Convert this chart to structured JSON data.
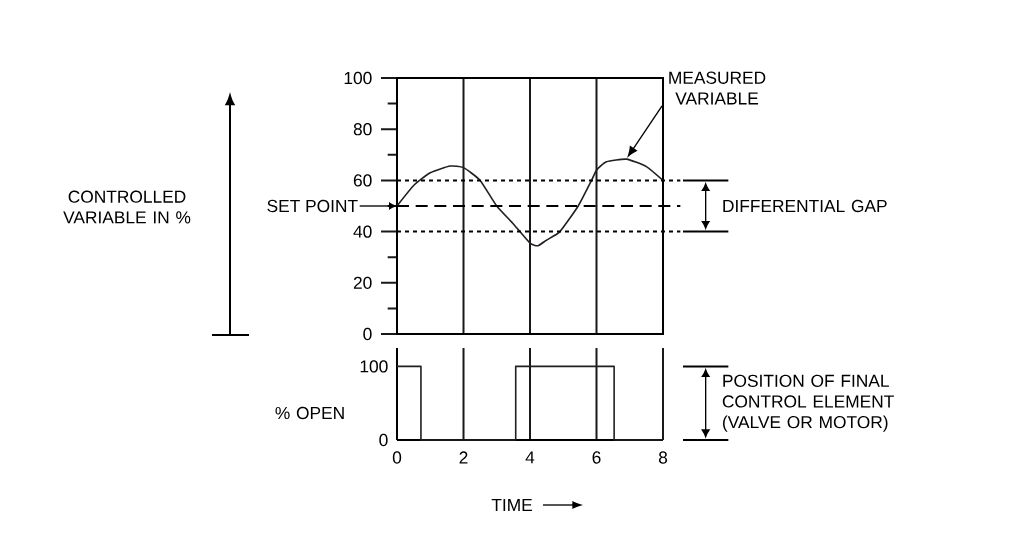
{
  "chart_data": [
    {
      "type": "line",
      "ylabel": "CONTROLLED VARIABLE IN %",
      "xlim": [
        0,
        8
      ],
      "xticks": [
        0,
        2,
        4,
        6,
        8
      ],
      "ylim": [
        0,
        100
      ],
      "yticks": [
        0,
        {
          "value": 10,
          "label": null
        },
        20,
        {
          "value": 30,
          "label": null
        },
        40,
        {
          "value": 50,
          "label": null
        },
        60,
        {
          "value": 70,
          "label": null
        },
        80,
        {
          "value": 90,
          "label": null
        },
        100
      ],
      "grid": "x",
      "tick_labels": "y",
      "marker": "none",
      "line_style": "solid",
      "x": [
        0,
        0.5,
        1,
        1.6,
        2,
        2.5,
        3,
        3.5,
        4,
        4.24,
        4.5,
        4.9,
        5.45,
        5.85,
        6,
        6.3,
        6.9,
        7.5,
        8
      ],
      "series": [
        {
          "color": "#231f20",
          "values": [
            50,
            58,
            63,
            65.6,
            65,
            60,
            50,
            43,
            35.5,
            34.5,
            36.7,
            40,
            50,
            60,
            64,
            67.3,
            68.3,
            65.4,
            60
          ]
        }
      ],
      "ref_lines": [
        {
          "axis": "y",
          "value": 60,
          "line_style": "dotted"
        },
        {
          "axis": "y",
          "value": 50,
          "line_style": "dashed",
          "label": "SET POINT"
        },
        {
          "axis": "y",
          "value": 40,
          "line_style": "dotted"
        }
      ],
      "annotations": [
        "MEASURED VARIABLE",
        "DIFFERENTIAL GAP"
      ]
    },
    {
      "type": "step",
      "ylabel": "% OPEN",
      "xlabel": "TIME",
      "xlim": [
        0,
        8
      ],
      "xticks": [
        0,
        2,
        4,
        6,
        8
      ],
      "ylim": [
        0,
        125
      ],
      "yticks": [
        0,
        100
      ],
      "grid": "x",
      "marker": "none",
      "line_style": "solid",
      "x": [
        0,
        0.72,
        3.57,
        6.53,
        8
      ],
      "series": [
        {
          "color": "#231f20",
          "values": [
            100,
            0,
            100,
            0,
            0
          ]
        }
      ],
      "annotations": [
        "POSITION OF FINAL CONTROL ELEMENT (VALVE OR MOTOR)"
      ]
    }
  ]
}
